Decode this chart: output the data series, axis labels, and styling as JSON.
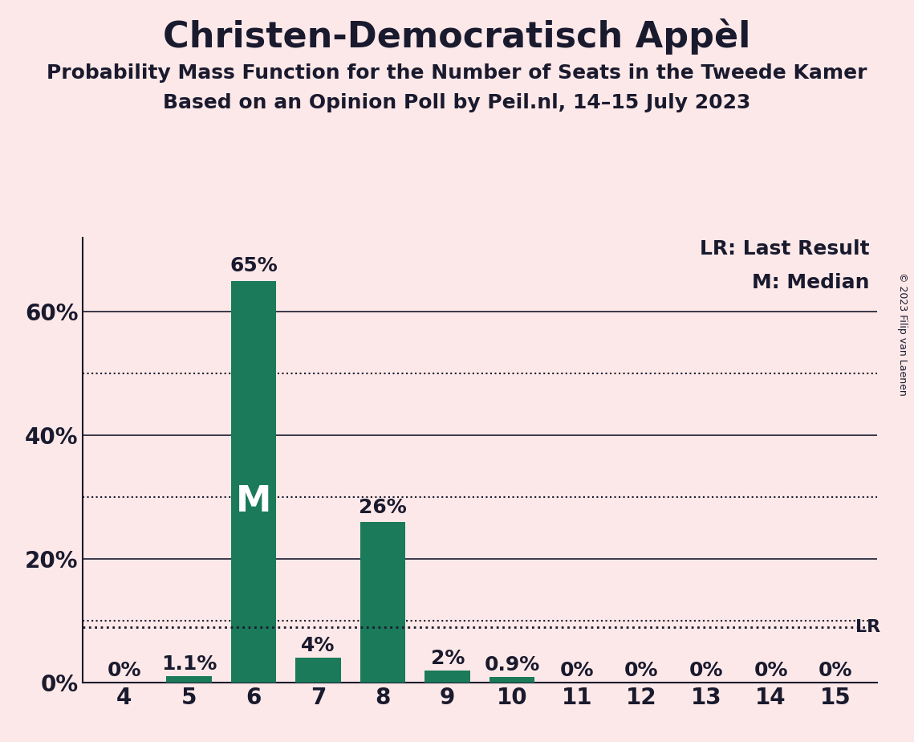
{
  "title": "Christen-Democratisch Appèl",
  "subtitle1": "Probability Mass Function for the Number of Seats in the Tweede Kamer",
  "subtitle2": "Based on an Opinion Poll by Peil.nl, 14–15 July 2023",
  "copyright": "© 2023 Filip van Laenen",
  "categories": [
    4,
    5,
    6,
    7,
    8,
    9,
    10,
    11,
    12,
    13,
    14,
    15
  ],
  "values": [
    0.0,
    1.1,
    65.0,
    4.0,
    26.0,
    2.0,
    0.9,
    0.0,
    0.0,
    0.0,
    0.0,
    0.0
  ],
  "bar_color": "#1a7a5a",
  "background_color": "#fce8e8",
  "text_color": "#1a1a2e",
  "lr_value": 9.0,
  "median_seat": 6,
  "ylim": [
    0,
    72
  ],
  "yticks": [
    0,
    20,
    40,
    60
  ],
  "solid_lines": [
    20,
    40,
    60
  ],
  "dotted_lines": [
    10,
    30,
    50
  ],
  "lr_dotted_line": 9.0,
  "label_texts": [
    "0%",
    "1.1%",
    "65%",
    "4%",
    "26%",
    "2%",
    "0.9%",
    "0%",
    "0%",
    "0%",
    "0%",
    "0%"
  ],
  "legend_lr": "LR: Last Result",
  "legend_m": "M: Median"
}
